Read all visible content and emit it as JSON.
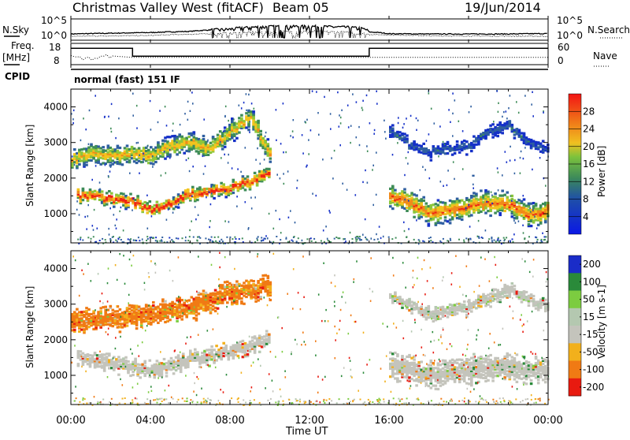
{
  "header": {
    "station": "Christmas Valley West (fitACF)",
    "beam": "Beam 05",
    "date": "19/Jun/2014"
  },
  "labels": {
    "nsky": "N.Sky",
    "nsearch": "N.Search",
    "freq_line1": "Freq.",
    "freq_line2": "[MHz]",
    "nave": "Nave",
    "cpid": "CPID",
    "cpid_value": "normal (fast) 151 IF",
    "ylabel": "Slant Range [km]",
    "xlabel": "Time UT"
  },
  "ticks": {
    "x": [
      "00:00",
      "04:00",
      "08:00",
      "12:00",
      "16:00",
      "20:00",
      "00:00"
    ],
    "range_y": [
      "1000",
      "2000",
      "3000",
      "4000"
    ],
    "noise_left": [
      "10^5",
      "10^0"
    ],
    "noise_right": [
      "10^5",
      "10^0"
    ],
    "freq_left": [
      "18",
      "8"
    ],
    "nave_right": [
      "60",
      "0"
    ]
  },
  "chart_data": [
    {
      "type": "line",
      "title": "N.Sky / N.Search",
      "x_range_hours": [
        0,
        24
      ],
      "yscale": "log",
      "series": [
        {
          "name": "N.Sky",
          "x": [
            0,
            2,
            4,
            6,
            8,
            10,
            12,
            14,
            15,
            16,
            18,
            20,
            22,
            24
          ],
          "values": [
            15,
            25,
            40,
            90,
            400,
            2500,
            3000,
            1500,
            60,
            18,
            15,
            15,
            15,
            20
          ]
        },
        {
          "name": "N.Search",
          "x": [
            0,
            4,
            8,
            12,
            15,
            18,
            24
          ],
          "values": [
            3,
            5,
            20,
            80,
            10,
            4,
            3
          ]
        }
      ]
    },
    {
      "type": "line",
      "title": "Freq. [MHz] / Nave",
      "x_range_hours": [
        0,
        24
      ],
      "series": [
        {
          "name": "Freq.",
          "x": [
            0,
            3.1,
            3.1,
            15,
            15,
            24
          ],
          "values": [
            16.5,
            16.5,
            12,
            12,
            16.5,
            16.5
          ],
          "ylim": [
            8,
            18
          ]
        },
        {
          "name": "Nave",
          "x": [
            0,
            1,
            2,
            3,
            8,
            15,
            20,
            24
          ],
          "values": [
            20,
            15,
            25,
            20,
            20,
            20,
            20,
            20
          ],
          "ylim": [
            0,
            60
          ]
        }
      ]
    },
    {
      "type": "heatmap",
      "title": "Power [dB]",
      "x_range_hours": [
        0,
        24
      ],
      "ylim": [
        180,
        4500
      ],
      "colorbar": {
        "label": "Power [dB]",
        "ticks": [
          4,
          8,
          12,
          16,
          20,
          24,
          28
        ],
        "range": [
          0,
          32
        ]
      },
      "features": [
        {
          "x": [
            0,
            1,
            2,
            3,
            4,
            5,
            6,
            7,
            8,
            9,
            10
          ],
          "values": [
            2500,
            2700,
            2600,
            2700,
            2600,
            2900,
            3000,
            2800,
            3300,
            3700,
            2600
          ],
          "thickness_km": 300,
          "peak_db": 22
        },
        {
          "x": [
            0.3,
            1,
            2,
            3,
            4,
            5,
            6,
            7,
            8,
            9,
            10
          ],
          "values": [
            1500,
            1500,
            1400,
            1350,
            1100,
            1300,
            1550,
            1600,
            1700,
            1900,
            2200
          ],
          "thickness_km": 200,
          "peak_db": 30
        },
        {
          "x": [
            16,
            17,
            18,
            19,
            20,
            21,
            22,
            23,
            24
          ],
          "values": [
            3300,
            2950,
            2700,
            2800,
            2900,
            3350,
            3450,
            3000,
            2800
          ],
          "thickness_km": 180,
          "peak_db": 8
        },
        {
          "x": [
            16,
            17,
            18,
            19,
            20,
            21,
            22,
            23,
            24
          ],
          "values": [
            1500,
            1300,
            1000,
            1100,
            1200,
            1300,
            1250,
            950,
            1100
          ],
          "thickness_km": 350,
          "peak_db": 26
        }
      ]
    },
    {
      "type": "heatmap",
      "title": "Velocity [m s^-1]",
      "x_range_hours": [
        0,
        24
      ],
      "ylim": [
        180,
        4500
      ],
      "colorbar": {
        "label": "Velocity [m s-1]",
        "ticks": [
          200,
          100,
          50,
          15,
          -15,
          -50,
          -100,
          -200
        ],
        "range": [
          -250,
          250
        ]
      },
      "features": [
        {
          "x": [
            0,
            2,
            4,
            6,
            8,
            10
          ],
          "values": [
            2500,
            2600,
            2700,
            2900,
            3300,
            3500
          ],
          "thickness_km": 350,
          "velocity": -60
        },
        {
          "x": [
            0.3,
            2,
            4,
            6,
            8,
            10
          ],
          "values": [
            1500,
            1350,
            1100,
            1450,
            1650,
            2000
          ],
          "thickness_km": 250,
          "velocity": 0
        },
        {
          "x": [
            16,
            18,
            20,
            22,
            24
          ],
          "values": [
            3200,
            2700,
            2900,
            3400,
            2900
          ],
          "thickness_km": 200,
          "velocity": 5
        },
        {
          "x": [
            16,
            18,
            20,
            22,
            24
          ],
          "values": [
            1300,
            1000,
            1150,
            1250,
            1100
          ],
          "thickness_km": 400,
          "velocity": 0
        }
      ]
    }
  ]
}
